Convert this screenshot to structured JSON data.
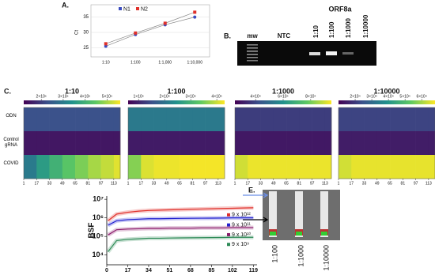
{
  "panel_labels": [
    "A.",
    "B.",
    "C.",
    "E."
  ],
  "gel": {
    "target": "ORF8a",
    "lanes": [
      "mw",
      "NTC",
      "1:10",
      "1:100",
      "1:1000",
      "1:10000"
    ]
  },
  "strip": {
    "lanes": [
      "1:100",
      "1:1000",
      "1:10000"
    ]
  },
  "chart_data": [
    {
      "type": "line",
      "ylabel": "Ct",
      "categories": [
        "1:10",
        "1:100",
        "1:1,000",
        "1:10,000"
      ],
      "series": [
        {
          "name": "N1",
          "color": "#3b4cc0",
          "values": [
            25.5,
            29.3,
            32.5,
            35
          ]
        },
        {
          "name": "N2",
          "color": "#e0302a",
          "values": [
            26.3,
            29.8,
            33,
            36.6
          ]
        }
      ],
      "ylim": [
        22,
        38
      ],
      "yticks": [
        25,
        30,
        35
      ],
      "grid": true
    },
    {
      "type": "heatmap",
      "title": "1:10",
      "rows": [
        "ODN",
        "Control gRNA",
        "COVID"
      ],
      "x": [
        1,
        17,
        33,
        49,
        65,
        81,
        97,
        113
      ],
      "xlim": [
        1,
        121
      ],
      "xticks": [
        1,
        17,
        33,
        49,
        65,
        81,
        97,
        113
      ],
      "clim": [
        1200000,
        5600000
      ],
      "cticks": [
        {
          "value": 2000000,
          "label": "2×10⁶"
        },
        {
          "value": 3000000,
          "label": "3×10⁶"
        },
        {
          "value": 4000000,
          "label": "4×10⁶"
        },
        {
          "value": 5000000,
          "label": "5×10⁶"
        }
      ],
      "z": [
        [
          2300000,
          2300000,
          2300000,
          2300000,
          2300000,
          2300000,
          2300000,
          2300000
        ],
        [
          1500000,
          1500000,
          1500000,
          1500000,
          1500000,
          1500000,
          1500000,
          1500000
        ],
        [
          3000000,
          3600000,
          4000000,
          4400000,
          4700000,
          5000000,
          5200000,
          5400000
        ]
      ]
    },
    {
      "type": "heatmap",
      "title": "1:100",
      "x": [
        1,
        17,
        33,
        49,
        65,
        81,
        97,
        113
      ],
      "xlim": [
        1,
        121
      ],
      "xticks": [
        1,
        17,
        33,
        49,
        65,
        81,
        97,
        113
      ],
      "clim": [
        60000,
        430000
      ],
      "cticks": [
        {
          "value": 100000,
          "label": "1×10⁵"
        },
        {
          "value": 200000,
          "label": "2×10⁵"
        },
        {
          "value": 300000,
          "label": "3×10⁵"
        },
        {
          "value": 400000,
          "label": "4×10⁵"
        }
      ],
      "z": [
        [
          210000,
          210000,
          210000,
          210000,
          210000,
          210000,
          210000,
          210000
        ],
        [
          90000,
          90000,
          90000,
          90000,
          90000,
          90000,
          90000,
          90000
        ],
        [
          360000,
          410000,
          420000,
          420000,
          425000,
          425000,
          425000,
          425000
        ]
      ]
    },
    {
      "type": "heatmap",
      "title": "1:1000",
      "x": [
        1,
        17,
        33,
        49,
        65,
        81,
        97,
        113
      ],
      "xlim": [
        1,
        121
      ],
      "xticks": [
        1,
        17,
        33,
        49,
        65,
        81,
        97,
        113
      ],
      "clim": [
        25000,
        95000
      ],
      "cticks": [
        {
          "value": 40000,
          "label": "4×10⁴"
        },
        {
          "value": 60000,
          "label": "6×10⁴"
        },
        {
          "value": 80000,
          "label": "8×10⁴"
        }
      ],
      "z": [
        [
          38000,
          38000,
          38000,
          38000,
          38000,
          38000,
          38000,
          38000
        ],
        [
          30000,
          30000,
          30000,
          30000,
          30000,
          30000,
          30000,
          30000
        ],
        [
          90000,
          93000,
          93000,
          93000,
          93000,
          93000,
          93000,
          93000
        ]
      ]
    },
    {
      "type": "heatmap",
      "title": "1:10000",
      "x": [
        1,
        17,
        33,
        49,
        65,
        81,
        97,
        113
      ],
      "xlim": [
        1,
        121
      ],
      "xticks": [
        1,
        17,
        33,
        49,
        65,
        81,
        97,
        113
      ],
      "clim": [
        10000,
        68000
      ],
      "cticks": [
        {
          "value": 20000,
          "label": "2×10⁴"
        },
        {
          "value": 30000,
          "label": "3×10⁴"
        },
        {
          "value": 40000,
          "label": "4×10⁴"
        },
        {
          "value": 50000,
          "label": "5×10⁴"
        },
        {
          "value": 60000,
          "label": "6×10⁴"
        }
      ],
      "z": [
        [
          22000,
          22000,
          22000,
          22000,
          22000,
          22000,
          22000,
          22000
        ],
        [
          15000,
          15000,
          15000,
          15000,
          15000,
          15000,
          15000,
          15000
        ],
        [
          64000,
          66000,
          66000,
          66000,
          66000,
          66000,
          66000,
          66000
        ]
      ]
    },
    {
      "type": "logline",
      "ylabel": "BSF",
      "log": true,
      "x": [
        1,
        8,
        17,
        26,
        34,
        43,
        51,
        60,
        68,
        77,
        85,
        94,
        102,
        111,
        119
      ],
      "series": [
        {
          "name": "9 x 10¹²",
          "color": "#e0302a",
          "values": [
            700000,
            1600000,
            2000000,
            2300000,
            2500000,
            2600000,
            2700000,
            2800000,
            2900000,
            3000000,
            3100000,
            3200000,
            3300000,
            3400000,
            3500000
          ]
        },
        {
          "name": "9 x 10¹¹",
          "color": "#2020d0",
          "values": [
            400000,
            700000,
            800000,
            850000,
            900000,
            900000,
            920000,
            940000,
            950000,
            960000,
            970000,
            980000,
            1000000,
            1000000,
            1000000
          ]
        },
        {
          "name": "9 x 10¹⁰",
          "color": "#8b1a6b",
          "values": [
            120000,
            230000,
            250000,
            260000,
            270000,
            270000,
            280000,
            280000,
            280000,
            290000,
            290000,
            290000,
            300000,
            300000,
            300000
          ]
        },
        {
          "name": "9 x 10⁹",
          "color": "#2e8b57",
          "values": [
            15000,
            60000,
            70000,
            75000,
            80000,
            80000,
            82000,
            84000,
            85000,
            86000,
            87000,
            88000,
            90000,
            90000,
            90000
          ]
        }
      ],
      "xlim": [
        0,
        122
      ],
      "xticks": [
        0,
        17,
        34,
        51,
        68,
        85,
        102,
        119
      ],
      "ylim": [
        3000,
        15000000
      ],
      "yticks": [
        {
          "value": 10000,
          "label": "10⁴"
        },
        {
          "value": 100000,
          "label": "10⁵"
        },
        {
          "value": 1000000,
          "label": "10⁶"
        },
        {
          "value": 10000000,
          "label": "10⁷"
        }
      ]
    }
  ]
}
